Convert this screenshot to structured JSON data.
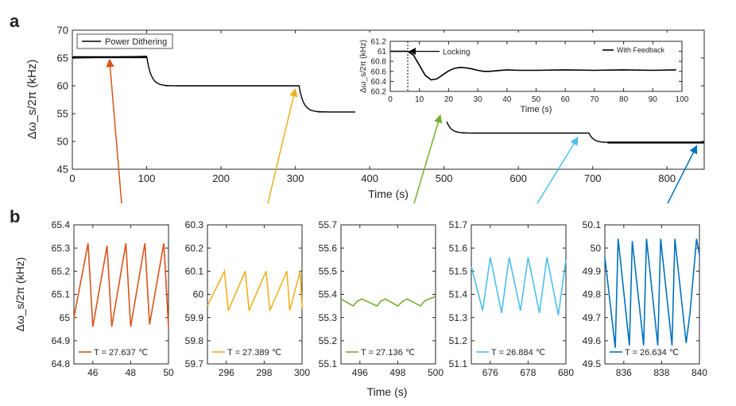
{
  "panel_labels": {
    "a": "a",
    "b": "b"
  },
  "chart_data": [
    {
      "id": "main",
      "type": "line",
      "ylabel": "Δω_s/2π (kHz)",
      "xlabel": "Time (s)",
      "xlim": [
        0,
        850
      ],
      "ylim": [
        45,
        70
      ],
      "xticks": [
        0,
        100,
        200,
        300,
        400,
        500,
        600,
        700,
        800
      ],
      "yticks": [
        45,
        50,
        55,
        60,
        65,
        70
      ],
      "legend": "Power Dithering",
      "color": "#000000",
      "segments": [
        {
          "x0": 0,
          "x1": 100,
          "level": 65.0,
          "to": 65.3,
          "band": 0.35
        },
        {
          "x0": 100,
          "x1": 305,
          "level": 60.0,
          "from": 65.3,
          "band": 0.15
        },
        {
          "x0": 305,
          "x1": 500,
          "level": 55.3,
          "from": 60.0,
          "band": 0.1
        },
        {
          "x0": 500,
          "x1": 695,
          "level": 51.5,
          "from": 55.3,
          "band": 0.15
        },
        {
          "x0": 695,
          "x1": 850,
          "level": 49.8,
          "from": 51.5,
          "band": 0.35
        }
      ],
      "arrows": [
        {
          "color": "#D95319",
          "target_x": 50,
          "target_y": 65.3
        },
        {
          "color": "#EDB120",
          "target_x": 300,
          "target_y": 60.0
        },
        {
          "color": "#77AC30",
          "target_x": 495,
          "target_y": 55.3
        },
        {
          "color": "#4DBEEE",
          "target_x": 680,
          "target_y": 51.3
        },
        {
          "color": "#0072BD",
          "target_x": 840,
          "target_y": 49.8
        }
      ]
    },
    {
      "id": "inset",
      "type": "line",
      "ylabel": "Δω_s/2π (kHz)",
      "xlabel": "Time (s)",
      "xlim": [
        0,
        100
      ],
      "ylim": [
        60.2,
        61.2
      ],
      "xticks": [
        0,
        10,
        20,
        30,
        40,
        50,
        60,
        70,
        80,
        90,
        100
      ],
      "yticks": [
        60.2,
        60.4,
        60.6,
        60.8,
        61,
        61.2
      ],
      "legend": "With Feedback",
      "annotation": "Locking",
      "lock_time": 6,
      "color": "#000000",
      "x": [
        0,
        6,
        8,
        10,
        12,
        14,
        16,
        18,
        20,
        22,
        24,
        26,
        28,
        30,
        32,
        34,
        36,
        40,
        44,
        50,
        60,
        70,
        80,
        90,
        98
      ],
      "y": [
        61.0,
        61.0,
        60.92,
        60.72,
        60.52,
        60.43,
        60.45,
        60.53,
        60.61,
        60.66,
        60.68,
        60.67,
        60.65,
        60.62,
        60.6,
        60.6,
        60.61,
        60.63,
        60.62,
        60.62,
        60.63,
        60.62,
        60.63,
        60.62,
        60.63
      ]
    },
    {
      "id": "b1",
      "type": "line",
      "color": "#D95319",
      "xlim": [
        45,
        50
      ],
      "ylim": [
        64.8,
        65.4
      ],
      "xticks": [
        46,
        48,
        50
      ],
      "xtick_labels": [
        "46",
        "48",
        "50"
      ],
      "yticks": [
        64.8,
        64.9,
        65,
        65.1,
        65.2,
        65.3,
        65.4
      ],
      "ytick_labels": [
        "64.8",
        "64.9",
        "65",
        "65.1",
        "65.2",
        "65.3",
        "65.4"
      ],
      "ylabel": "Δω_s/2π (kHz)",
      "legend": "T = 27.637 ℃",
      "x": [
        45.0,
        45.75,
        46.0,
        46.75,
        47.0,
        47.75,
        48.0,
        48.75,
        49.0,
        49.75,
        50.0
      ],
      "y": [
        65.0,
        65.32,
        64.96,
        65.31,
        64.96,
        65.32,
        64.96,
        65.32,
        64.97,
        65.32,
        64.96
      ]
    },
    {
      "id": "b2",
      "type": "line",
      "color": "#EDB120",
      "xlim": [
        295,
        300
      ],
      "ylim": [
        59.7,
        60.3
      ],
      "xticks": [
        296,
        298,
        300
      ],
      "xtick_labels": [
        "296",
        "298",
        "300"
      ],
      "yticks": [
        59.7,
        59.8,
        59.9,
        60,
        60.1,
        60.2,
        60.3
      ],
      "ytick_labels": [
        "59.7",
        "59.8",
        "59.9",
        "60",
        "60.1",
        "60.2",
        "60.3"
      ],
      "legend": "T = 27.389 ℃",
      "x": [
        295.0,
        295.9,
        296.1,
        297.0,
        297.2,
        298.1,
        298.3,
        299.2,
        299.35,
        299.9,
        300.0
      ],
      "y": [
        59.95,
        60.1,
        59.93,
        60.1,
        59.93,
        60.1,
        59.93,
        60.1,
        59.93,
        60.1,
        59.94
      ]
    },
    {
      "id": "b3",
      "type": "line",
      "color": "#77AC30",
      "xlim": [
        495,
        500
      ],
      "ylim": [
        55.1,
        55.7
      ],
      "xticks": [
        496,
        498,
        500
      ],
      "xtick_labels": [
        "496",
        "498",
        "500"
      ],
      "yticks": [
        55.1,
        55.2,
        55.3,
        55.4,
        55.5,
        55.6,
        55.7
      ],
      "ytick_labels": [
        "55.1",
        "55.2",
        "55.3",
        "55.4",
        "55.5",
        "55.6",
        "55.7"
      ],
      "legend": "T = 27.136 ℃",
      "x": [
        495.0,
        495.65,
        495.85,
        496.1,
        496.9,
        497.1,
        497.35,
        498.0,
        498.25,
        498.5,
        499.2,
        499.4,
        499.65,
        500.0
      ],
      "y": [
        55.38,
        55.35,
        55.37,
        55.38,
        55.35,
        55.37,
        55.38,
        55.35,
        55.37,
        55.38,
        55.35,
        55.37,
        55.38,
        55.39
      ]
    },
    {
      "id": "b4",
      "type": "line",
      "color": "#4DBEEE",
      "xlim": [
        675,
        680
      ],
      "ylim": [
        51.1,
        51.7
      ],
      "xticks": [
        676,
        678,
        680
      ],
      "xtick_labels": [
        "676",
        "678",
        "680"
      ],
      "yticks": [
        51.1,
        51.2,
        51.3,
        51.4,
        51.5,
        51.6,
        51.7
      ],
      "ytick_labels": [
        "51.1",
        "51.2",
        "51.3",
        "51.4",
        "51.5",
        "51.6",
        "51.7"
      ],
      "legend": "T = 26.884 ℃",
      "x": [
        675.0,
        675.6,
        676.0,
        676.6,
        677.0,
        677.6,
        678.0,
        678.6,
        679.0,
        679.6,
        680.0
      ],
      "y": [
        51.52,
        51.33,
        51.56,
        51.32,
        51.56,
        51.33,
        51.56,
        51.32,
        51.56,
        51.31,
        51.55
      ]
    },
    {
      "id": "b5",
      "type": "line",
      "color": "#0072BD",
      "xlim": [
        835,
        840
      ],
      "ylim": [
        49.5,
        50.1
      ],
      "xticks": [
        836,
        838,
        840
      ],
      "xtick_labels": [
        "836",
        "838",
        "840"
      ],
      "yticks": [
        49.5,
        49.6,
        49.7,
        49.8,
        49.9,
        50,
        50.1
      ],
      "ytick_labels": [
        "49.5",
        "49.6",
        "49.7",
        "49.8",
        "49.9",
        "50",
        "50.1"
      ],
      "legend": "T = 26.634 ℃",
      "x": [
        835.0,
        835.55,
        835.7,
        836.3,
        836.45,
        837.05,
        837.2,
        837.8,
        837.95,
        838.55,
        838.7,
        839.3,
        839.5,
        839.85,
        840.0
      ],
      "y": [
        49.96,
        49.57,
        50.04,
        49.58,
        50.03,
        49.58,
        50.04,
        49.58,
        50.04,
        49.58,
        50.04,
        49.59,
        49.72,
        50.04,
        49.97
      ]
    }
  ],
  "shared_xlabel": "Time (s)"
}
